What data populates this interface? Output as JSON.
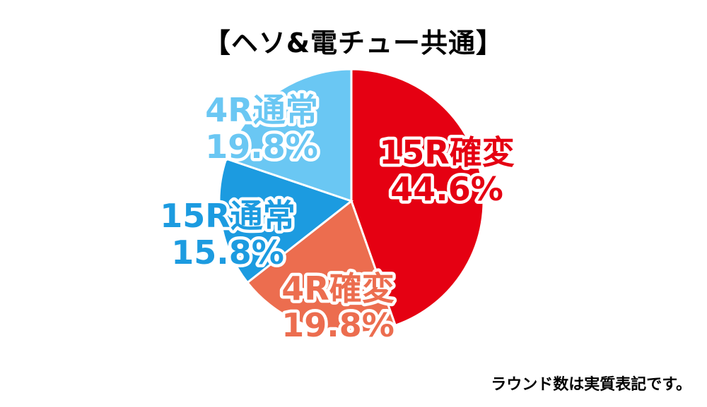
{
  "title": "【ヘソ&電チュー共通】",
  "note": "ラウンド数は実質表記です。",
  "chart_data": {
    "type": "pie",
    "title": "【ヘソ&電チュー共通】",
    "start": "12 o'clock, clockwise",
    "slices": [
      {
        "name": "15R確変",
        "value": 44.6,
        "label": "44.6%",
        "color": "#e50012"
      },
      {
        "name": "4R確変",
        "value": 19.8,
        "label": "19.8%",
        "color": "#ec6d4f"
      },
      {
        "name": "15R通常",
        "value": 15.8,
        "label": "15.8%",
        "color": "#1c9be0"
      },
      {
        "name": "4R通常",
        "value": 19.8,
        "label": "19.8%",
        "color": "#6ac7f3"
      }
    ]
  }
}
